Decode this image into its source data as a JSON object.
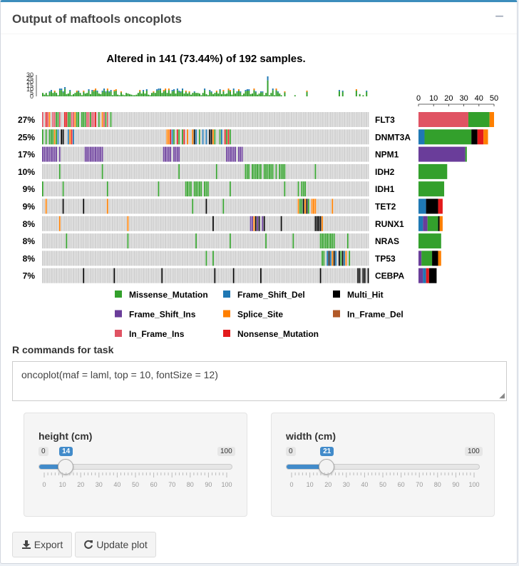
{
  "header": {
    "title": "Output of maftools oncoplots",
    "collapse_label": "−"
  },
  "plot": {
    "title": "Altered in 141 (73.44%) of 192 samples.",
    "top_axis_ticks": [
      "0",
      "5",
      "10",
      "15",
      "20",
      "25",
      "30"
    ],
    "right_axis_ticks": [
      "0",
      "10",
      "20",
      "30",
      "40",
      "50"
    ],
    "genes": [
      {
        "name": "FLT3",
        "pct": "27%"
      },
      {
        "name": "DNMT3A",
        "pct": "25%"
      },
      {
        "name": "NPM1",
        "pct": "17%"
      },
      {
        "name": "IDH2",
        "pct": "10%"
      },
      {
        "name": "IDH1",
        "pct": "9%"
      },
      {
        "name": "TET2",
        "pct": "9%"
      },
      {
        "name": "RUNX1",
        "pct": "8%"
      },
      {
        "name": "NRAS",
        "pct": "8%"
      },
      {
        "name": "TP53",
        "pct": "8%"
      },
      {
        "name": "CEBPA",
        "pct": "7%"
      }
    ],
    "legend": [
      {
        "label": "Missense_Mutation",
        "color": "#33a02c"
      },
      {
        "label": "Frame_Shift_Del",
        "color": "#1f78b4"
      },
      {
        "label": "Multi_Hit",
        "color": "#000000"
      },
      {
        "label": "Frame_Shift_Ins",
        "color": "#6a3d9a"
      },
      {
        "label": "Splice_Site",
        "color": "#ff7f00"
      },
      {
        "label": "In_Frame_Del",
        "color": "#b15928"
      },
      {
        "label": "In_Frame_Ins",
        "color": "#e05363"
      },
      {
        "label": "Nonsense_Mutation",
        "color": "#e31a1c"
      }
    ]
  },
  "commands": {
    "label": "R commands for task",
    "text": "oncoplot(maf = laml, top = 10, fontSize = 12)"
  },
  "height_slider": {
    "label": "height (cm)",
    "min": "0",
    "max": "100",
    "value": "14",
    "fraction": 0.14,
    "ticks": [
      "0",
      "10",
      "20",
      "30",
      "40",
      "50",
      "60",
      "70",
      "80",
      "90",
      "100"
    ]
  },
  "width_slider": {
    "label": "width (cm)",
    "min": "0",
    "max": "100",
    "value": "21",
    "fraction": 0.21,
    "ticks": [
      "0",
      "10",
      "20",
      "30",
      "40",
      "50",
      "60",
      "70",
      "80",
      "90",
      "100"
    ]
  },
  "buttons": {
    "export": "Export",
    "update": "Update plot"
  }
}
